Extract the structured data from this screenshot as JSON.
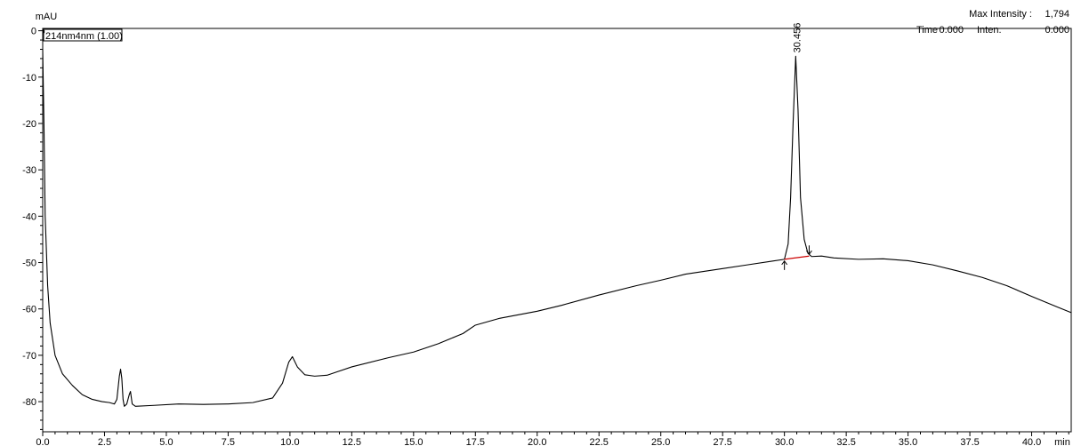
{
  "header": {
    "unit": "mAU",
    "max_intensity_label": "Max Intensity :",
    "max_intensity_value": "1,794",
    "time_label": "Time",
    "time_value": "0.000",
    "inten_label": "Inten.",
    "inten_value": "0.000",
    "channel_label": "214nm4nm (1.00)"
  },
  "chart_data": {
    "type": "line",
    "xlabel": "min",
    "ylabel": "mAU",
    "xlim": [
      0.0,
      41.6
    ],
    "ylim": [
      -86.5,
      0.5
    ],
    "x_ticks": [
      "0.0",
      "2.5",
      "5.0",
      "7.5",
      "10.0",
      "12.5",
      "15.0",
      "17.5",
      "20.0",
      "22.5",
      "25.0",
      "27.5",
      "30.0",
      "32.5",
      "35.0",
      "37.5",
      "40.0"
    ],
    "y_ticks": [
      "0",
      "-10",
      "-20",
      "-30",
      "-40",
      "-50",
      "-60",
      "-70",
      "-80"
    ],
    "grid": false,
    "series": [
      {
        "color": "#000000",
        "points": [
          [
            0.0,
            -4.0
          ],
          [
            0.05,
            -20
          ],
          [
            0.1,
            -40
          ],
          [
            0.2,
            -55
          ],
          [
            0.3,
            -63
          ],
          [
            0.5,
            -70
          ],
          [
            0.8,
            -74
          ],
          [
            1.2,
            -76.5
          ],
          [
            1.6,
            -78.5
          ],
          [
            2.0,
            -79.5
          ],
          [
            2.4,
            -80.0
          ],
          [
            2.7,
            -80.2
          ],
          [
            2.9,
            -80.5
          ],
          [
            3.0,
            -79.5
          ],
          [
            3.05,
            -77
          ],
          [
            3.1,
            -74.5
          ],
          [
            3.15,
            -73
          ],
          [
            3.2,
            -75
          ],
          [
            3.25,
            -79.5
          ],
          [
            3.3,
            -81
          ],
          [
            3.4,
            -80.5
          ],
          [
            3.5,
            -78.5
          ],
          [
            3.55,
            -77.8
          ],
          [
            3.62,
            -80.5
          ],
          [
            3.75,
            -81.0
          ],
          [
            4.5,
            -80.8
          ],
          [
            5.5,
            -80.5
          ],
          [
            6.5,
            -80.6
          ],
          [
            7.5,
            -80.5
          ],
          [
            8.5,
            -80.2
          ],
          [
            9.3,
            -79.2
          ],
          [
            9.7,
            -76
          ],
          [
            9.95,
            -71.5
          ],
          [
            10.1,
            -70.3
          ],
          [
            10.3,
            -72.5
          ],
          [
            10.6,
            -74.2
          ],
          [
            11.0,
            -74.5
          ],
          [
            11.5,
            -74.3
          ],
          [
            12.5,
            -72.5
          ],
          [
            14.0,
            -70.5
          ],
          [
            15.0,
            -69.3
          ],
          [
            16.0,
            -67.5
          ],
          [
            17.0,
            -65.3
          ],
          [
            17.5,
            -63.5
          ],
          [
            18.5,
            -62
          ],
          [
            20.0,
            -60.5
          ],
          [
            21.0,
            -59.2
          ],
          [
            22.5,
            -57.0
          ],
          [
            24.0,
            -55.0
          ],
          [
            25.0,
            -53.8
          ],
          [
            26.0,
            -52.5
          ],
          [
            27.5,
            -51.3
          ],
          [
            28.5,
            -50.5
          ],
          [
            29.5,
            -49.7
          ],
          [
            30.0,
            -49.3
          ],
          [
            30.15,
            -46
          ],
          [
            30.25,
            -36
          ],
          [
            30.35,
            -20
          ],
          [
            30.456,
            -5.5
          ],
          [
            30.55,
            -17
          ],
          [
            30.65,
            -36
          ],
          [
            30.8,
            -45
          ],
          [
            30.95,
            -48
          ],
          [
            31.1,
            -48.7
          ],
          [
            31.5,
            -48.6
          ],
          [
            32.0,
            -49.0
          ],
          [
            33.0,
            -49.3
          ],
          [
            34.0,
            -49.2
          ],
          [
            35.0,
            -49.6
          ],
          [
            36.0,
            -50.5
          ],
          [
            37.0,
            -51.8
          ],
          [
            38.0,
            -53.2
          ],
          [
            39.0,
            -55.0
          ],
          [
            40.0,
            -57.3
          ],
          [
            41.0,
            -59.5
          ],
          [
            41.6,
            -60.8
          ]
        ]
      }
    ],
    "baseline": {
      "color": "#cc0000",
      "points": [
        [
          30.0,
          -49.3
        ],
        [
          31.0,
          -48.6
        ]
      ]
    },
    "peak_markers": [
      30.0,
      31.0
    ],
    "peak_label": {
      "text": "30.456",
      "x": 30.456,
      "y": -5.5
    }
  }
}
